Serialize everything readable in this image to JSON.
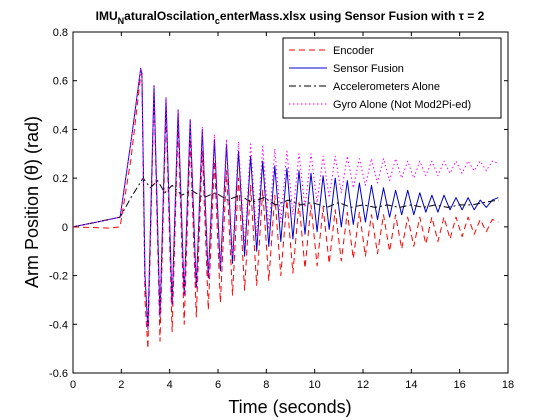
{
  "chart_data": {
    "type": "line",
    "title_parts": {
      "a": "IMU",
      "a_sub": "N",
      "b": "aturalOscilation",
      "b_sub": "c",
      "c": "enterMass.xlsx using Sensor Fusion with τ = 2"
    },
    "xlabel": "Time (seconds)",
    "ylabel": "Arm Position (θ) (rad)",
    "xlim": [
      0,
      18
    ],
    "ylim": [
      -0.6,
      0.8
    ],
    "x_ticks": [
      "0",
      "2",
      "4",
      "6",
      "8",
      "10",
      "12",
      "14",
      "16",
      "18"
    ],
    "y_ticks": [
      "-0.6",
      "-0.4",
      "-0.2",
      "0",
      "0.2",
      "0.4",
      "0.6",
      "0.8"
    ],
    "x_tick_values": [
      0,
      2,
      4,
      6,
      8,
      10,
      12,
      14,
      16,
      18
    ],
    "y_tick_values": [
      -0.6,
      -0.4,
      -0.2,
      0,
      0.2,
      0.4,
      0.6,
      0.8
    ],
    "grid": false,
    "legend_position": "top-right",
    "series": [
      {
        "name": "Encoder",
        "color": "#ff0000",
        "style": "dashed",
        "points": [
          [
            0,
            0.0
          ],
          [
            1.5,
            -0.005
          ],
          [
            1.95,
            0.0
          ],
          [
            2.4,
            0.28
          ],
          [
            2.8,
            0.62
          ],
          [
            2.85,
            0.63
          ],
          [
            2.98,
            -0.3
          ],
          [
            3.1,
            -0.5
          ],
          [
            3.35,
            0.55
          ],
          [
            3.6,
            -0.47
          ],
          [
            3.85,
            0.48
          ],
          [
            4.1,
            -0.43
          ],
          [
            4.35,
            0.42
          ],
          [
            4.6,
            -0.4
          ],
          [
            4.85,
            0.36
          ],
          [
            5.1,
            -0.37
          ],
          [
            5.35,
            0.31
          ],
          [
            5.6,
            -0.34
          ],
          [
            5.85,
            0.27
          ],
          [
            6.1,
            -0.31
          ],
          [
            6.35,
            0.23
          ],
          [
            6.6,
            -0.28
          ],
          [
            6.85,
            0.2
          ],
          [
            7.1,
            -0.26
          ],
          [
            7.35,
            0.17
          ],
          [
            7.6,
            -0.24
          ],
          [
            7.85,
            0.15
          ],
          [
            8.1,
            -0.22
          ],
          [
            8.35,
            0.13
          ],
          [
            8.6,
            -0.2
          ],
          [
            8.85,
            0.11
          ],
          [
            9.1,
            -0.19
          ],
          [
            9.35,
            0.1
          ],
          [
            9.6,
            -0.17
          ],
          [
            9.85,
            0.09
          ],
          [
            10.1,
            -0.16
          ],
          [
            10.35,
            0.08
          ],
          [
            10.6,
            -0.15
          ],
          [
            10.85,
            0.07
          ],
          [
            11.1,
            -0.14
          ],
          [
            11.35,
            0.06
          ],
          [
            11.6,
            -0.13
          ],
          [
            11.85,
            0.06
          ],
          [
            12.1,
            -0.12
          ],
          [
            12.35,
            0.05
          ],
          [
            12.6,
            -0.11
          ],
          [
            12.85,
            0.05
          ],
          [
            13.1,
            -0.1
          ],
          [
            13.35,
            0.05
          ],
          [
            13.6,
            -0.09
          ],
          [
            13.85,
            0.04
          ],
          [
            14.1,
            -0.08
          ],
          [
            14.35,
            0.04
          ],
          [
            14.6,
            -0.07
          ],
          [
            14.85,
            0.04
          ],
          [
            15.1,
            -0.06
          ],
          [
            15.35,
            0.04
          ],
          [
            15.6,
            -0.05
          ],
          [
            15.85,
            0.04
          ],
          [
            16.1,
            -0.04
          ],
          [
            16.35,
            0.04
          ],
          [
            16.6,
            -0.03
          ],
          [
            16.85,
            0.03
          ],
          [
            17.1,
            -0.02
          ],
          [
            17.35,
            0.03
          ],
          [
            17.6,
            0.02
          ]
        ]
      },
      {
        "name": "Sensor Fusion",
        "color": "#0000cc",
        "style": "solid",
        "points": [
          [
            0,
            0.0
          ],
          [
            1.0,
            0.02
          ],
          [
            1.95,
            0.04
          ],
          [
            2.4,
            0.35
          ],
          [
            2.8,
            0.65
          ],
          [
            2.85,
            0.63
          ],
          [
            2.98,
            -0.2
          ],
          [
            3.1,
            -0.42
          ],
          [
            3.35,
            0.58
          ],
          [
            3.6,
            -0.37
          ],
          [
            3.85,
            0.53
          ],
          [
            4.1,
            -0.32
          ],
          [
            4.35,
            0.48
          ],
          [
            4.6,
            -0.28
          ],
          [
            4.85,
            0.44
          ],
          [
            5.1,
            -0.25
          ],
          [
            5.35,
            0.4
          ],
          [
            5.6,
            -0.21
          ],
          [
            5.85,
            0.36
          ],
          [
            6.1,
            -0.18
          ],
          [
            6.35,
            0.34
          ],
          [
            6.6,
            -0.15
          ],
          [
            6.85,
            0.31
          ],
          [
            7.1,
            -0.12
          ],
          [
            7.35,
            0.29
          ],
          [
            7.6,
            -0.1
          ],
          [
            7.85,
            0.27
          ],
          [
            8.1,
            -0.08
          ],
          [
            8.35,
            0.25
          ],
          [
            8.6,
            -0.06
          ],
          [
            8.85,
            0.24
          ],
          [
            9.1,
            -0.05
          ],
          [
            9.35,
            0.23
          ],
          [
            9.6,
            -0.03
          ],
          [
            9.85,
            0.22
          ],
          [
            10.1,
            -0.02
          ],
          [
            10.35,
            0.21
          ],
          [
            10.6,
            -0.01
          ],
          [
            10.85,
            0.2
          ],
          [
            11.1,
            0.0
          ],
          [
            11.35,
            0.19
          ],
          [
            11.6,
            0.01
          ],
          [
            11.85,
            0.18
          ],
          [
            12.1,
            0.02
          ],
          [
            12.35,
            0.17
          ],
          [
            12.6,
            0.03
          ],
          [
            12.85,
            0.16
          ],
          [
            13.1,
            0.04
          ],
          [
            13.35,
            0.15
          ],
          [
            13.6,
            0.05
          ],
          [
            13.85,
            0.15
          ],
          [
            14.1,
            0.05
          ],
          [
            14.35,
            0.14
          ],
          [
            14.6,
            0.06
          ],
          [
            14.85,
            0.13
          ],
          [
            15.1,
            0.06
          ],
          [
            15.35,
            0.13
          ],
          [
            15.6,
            0.07
          ],
          [
            15.85,
            0.12
          ],
          [
            16.1,
            0.07
          ],
          [
            16.35,
            0.12
          ],
          [
            16.6,
            0.07
          ],
          [
            16.85,
            0.11
          ],
          [
            17.1,
            0.08
          ],
          [
            17.35,
            0.11
          ],
          [
            17.6,
            0.12
          ]
        ]
      },
      {
        "name": "Accelerometers Alone",
        "color": "#000000",
        "style": "dashdot",
        "points": [
          [
            0,
            0.0
          ],
          [
            1.0,
            0.02
          ],
          [
            1.95,
            0.04
          ],
          [
            2.4,
            0.12
          ],
          [
            2.9,
            0.2
          ],
          [
            3.2,
            0.16
          ],
          [
            3.5,
            0.19
          ],
          [
            3.8,
            0.14
          ],
          [
            4.1,
            0.17
          ],
          [
            4.5,
            0.13
          ],
          [
            4.9,
            0.15
          ],
          [
            5.4,
            0.12
          ],
          [
            5.9,
            0.14
          ],
          [
            6.4,
            0.11
          ],
          [
            6.9,
            0.13
          ],
          [
            7.4,
            0.1
          ],
          [
            7.9,
            0.12
          ],
          [
            8.4,
            0.09
          ],
          [
            8.9,
            0.11
          ],
          [
            9.4,
            0.09
          ],
          [
            9.9,
            0.1
          ],
          [
            10.5,
            0.08
          ],
          [
            11.0,
            0.1
          ],
          [
            11.5,
            0.08
          ],
          [
            12.0,
            0.09
          ],
          [
            12.5,
            0.08
          ],
          [
            13.0,
            0.09
          ],
          [
            13.5,
            0.08
          ],
          [
            14.0,
            0.09
          ],
          [
            14.5,
            0.08
          ],
          [
            15.0,
            0.09
          ],
          [
            15.5,
            0.08
          ],
          [
            16.0,
            0.09
          ],
          [
            16.5,
            0.09
          ],
          [
            17.0,
            0.1
          ],
          [
            17.6,
            0.11
          ]
        ]
      },
      {
        "name": "Gyro Alone (Not Mod2Pi-ed)",
        "color": "#ff00ff",
        "style": "dotted",
        "points": [
          [
            0,
            0.0
          ],
          [
            1.0,
            0.02
          ],
          [
            1.95,
            0.04
          ],
          [
            2.4,
            0.35
          ],
          [
            2.8,
            0.65
          ],
          [
            2.85,
            0.63
          ],
          [
            2.98,
            -0.2
          ],
          [
            3.1,
            -0.42
          ],
          [
            3.35,
            0.58
          ],
          [
            3.6,
            -0.37
          ],
          [
            3.85,
            0.53
          ],
          [
            4.1,
            -0.32
          ],
          [
            4.35,
            0.48
          ],
          [
            4.6,
            -0.28
          ],
          [
            4.85,
            0.44
          ],
          [
            5.1,
            -0.25
          ],
          [
            5.35,
            0.41
          ],
          [
            5.6,
            -0.2
          ],
          [
            5.85,
            0.38
          ],
          [
            6.1,
            -0.16
          ],
          [
            6.35,
            0.36
          ],
          [
            6.6,
            -0.12
          ],
          [
            6.85,
            0.35
          ],
          [
            7.1,
            -0.08
          ],
          [
            7.35,
            0.34
          ],
          [
            7.6,
            -0.04
          ],
          [
            7.85,
            0.33
          ],
          [
            8.1,
            -0.01
          ],
          [
            8.35,
            0.32
          ],
          [
            8.6,
            0.02
          ],
          [
            8.85,
            0.31
          ],
          [
            9.1,
            0.05
          ],
          [
            9.35,
            0.3
          ],
          [
            9.6,
            0.08
          ],
          [
            9.85,
            0.3
          ],
          [
            10.1,
            0.1
          ],
          [
            10.35,
            0.29
          ],
          [
            10.6,
            0.12
          ],
          [
            10.85,
            0.29
          ],
          [
            11.1,
            0.14
          ],
          [
            11.35,
            0.29
          ],
          [
            11.6,
            0.16
          ],
          [
            11.85,
            0.28
          ],
          [
            12.1,
            0.17
          ],
          [
            12.35,
            0.28
          ],
          [
            12.6,
            0.18
          ],
          [
            12.85,
            0.28
          ],
          [
            13.1,
            0.19
          ],
          [
            13.35,
            0.28
          ],
          [
            13.6,
            0.2
          ],
          [
            13.85,
            0.27
          ],
          [
            14.1,
            0.2
          ],
          [
            14.35,
            0.27
          ],
          [
            14.6,
            0.21
          ],
          [
            14.85,
            0.27
          ],
          [
            15.1,
            0.21
          ],
          [
            15.35,
            0.27
          ],
          [
            15.6,
            0.22
          ],
          [
            15.85,
            0.27
          ],
          [
            16.1,
            0.22
          ],
          [
            16.35,
            0.27
          ],
          [
            16.6,
            0.23
          ],
          [
            16.85,
            0.27
          ],
          [
            17.1,
            0.23
          ],
          [
            17.35,
            0.27
          ],
          [
            17.6,
            0.26
          ]
        ]
      }
    ]
  }
}
